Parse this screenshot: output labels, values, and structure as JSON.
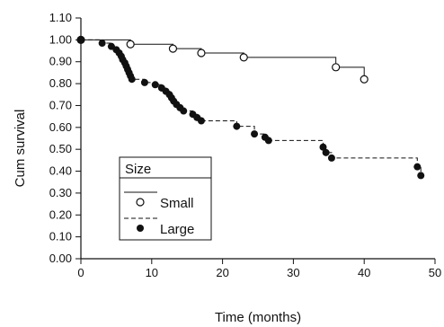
{
  "chart_data": {
    "type": "line",
    "subtype": "kaplan-meier-step",
    "xlabel": "Time (months)",
    "ylabel": "Cum survival",
    "xlim": [
      0,
      50
    ],
    "ylim": [
      0,
      1.1
    ],
    "x_ticks": [
      "0",
      "10",
      "20",
      "30",
      "40",
      "50"
    ],
    "y_ticks": [
      "0.00",
      "0.10",
      "0.20",
      "0.30",
      "0.40",
      "0.50",
      "0.60",
      "0.70",
      "0.80",
      "0.90",
      "1.00",
      "1.10"
    ],
    "grid": false,
    "legend": {
      "title": "Size",
      "placement": "lower-left",
      "entries": [
        {
          "name": "Small",
          "marker": "open-circle",
          "line": "solid"
        },
        {
          "name": "Large",
          "marker": "filled-circle",
          "line": "dashed"
        }
      ]
    },
    "series": [
      {
        "name": "Small",
        "marker": "open-circle",
        "line": "solid",
        "steps": [
          [
            0,
            1.0
          ],
          [
            7,
            0.98
          ],
          [
            13,
            0.96
          ],
          [
            17,
            0.94
          ],
          [
            23,
            0.92
          ],
          [
            36,
            0.875
          ],
          [
            40,
            0.82
          ]
        ],
        "end_x": 40,
        "points": [
          [
            0,
            1.0
          ],
          [
            7,
            0.98
          ],
          [
            13,
            0.96
          ],
          [
            17,
            0.94
          ],
          [
            23,
            0.92
          ],
          [
            36,
            0.875
          ],
          [
            40,
            0.82
          ]
        ]
      },
      {
        "name": "Large",
        "marker": "filled-circle",
        "line": "dashed",
        "steps": [
          [
            0,
            1.0
          ],
          [
            3,
            0.985
          ],
          [
            4.3,
            0.97
          ],
          [
            5,
            0.955
          ],
          [
            5.4,
            0.94
          ],
          [
            5.7,
            0.925
          ],
          [
            5.9,
            0.91
          ],
          [
            6.2,
            0.895
          ],
          [
            6.4,
            0.88
          ],
          [
            6.6,
            0.865
          ],
          [
            6.8,
            0.85
          ],
          [
            7,
            0.835
          ],
          [
            7.2,
            0.82
          ],
          [
            9,
            0.805
          ],
          [
            10.5,
            0.795
          ],
          [
            11.4,
            0.78
          ],
          [
            12,
            0.765
          ],
          [
            12.5,
            0.75
          ],
          [
            12.8,
            0.735
          ],
          [
            13.1,
            0.72
          ],
          [
            13.5,
            0.705
          ],
          [
            14,
            0.69
          ],
          [
            14.5,
            0.675
          ],
          [
            15.8,
            0.66
          ],
          [
            16.4,
            0.645
          ],
          [
            17,
            0.63
          ],
          [
            22,
            0.605
          ],
          [
            24.5,
            0.57
          ],
          [
            26,
            0.555
          ],
          [
            26.5,
            0.54
          ],
          [
            34.2,
            0.51
          ],
          [
            34.6,
            0.485
          ],
          [
            35.4,
            0.46
          ],
          [
            47.5,
            0.42
          ],
          [
            48,
            0.38
          ]
        ],
        "end_x": 48,
        "points": [
          [
            0,
            1.0
          ],
          [
            3,
            0.985
          ],
          [
            4.3,
            0.97
          ],
          [
            5,
            0.955
          ],
          [
            5.4,
            0.94
          ],
          [
            5.7,
            0.925
          ],
          [
            5.9,
            0.91
          ],
          [
            6.2,
            0.895
          ],
          [
            6.4,
            0.88
          ],
          [
            6.6,
            0.865
          ],
          [
            6.8,
            0.85
          ],
          [
            7,
            0.835
          ],
          [
            7.2,
            0.82
          ],
          [
            9,
            0.805
          ],
          [
            10.5,
            0.795
          ],
          [
            11.4,
            0.78
          ],
          [
            12,
            0.765
          ],
          [
            12.5,
            0.75
          ],
          [
            12.8,
            0.735
          ],
          [
            13.1,
            0.72
          ],
          [
            13.5,
            0.705
          ],
          [
            14,
            0.69
          ],
          [
            14.5,
            0.675
          ],
          [
            15.8,
            0.66
          ],
          [
            16.4,
            0.645
          ],
          [
            17,
            0.63
          ],
          [
            22,
            0.605
          ],
          [
            24.5,
            0.57
          ],
          [
            26,
            0.555
          ],
          [
            26.5,
            0.54
          ],
          [
            34.2,
            0.51
          ],
          [
            34.6,
            0.485
          ],
          [
            35.4,
            0.46
          ],
          [
            47.5,
            0.42
          ],
          [
            48,
            0.38
          ]
        ]
      }
    ]
  }
}
